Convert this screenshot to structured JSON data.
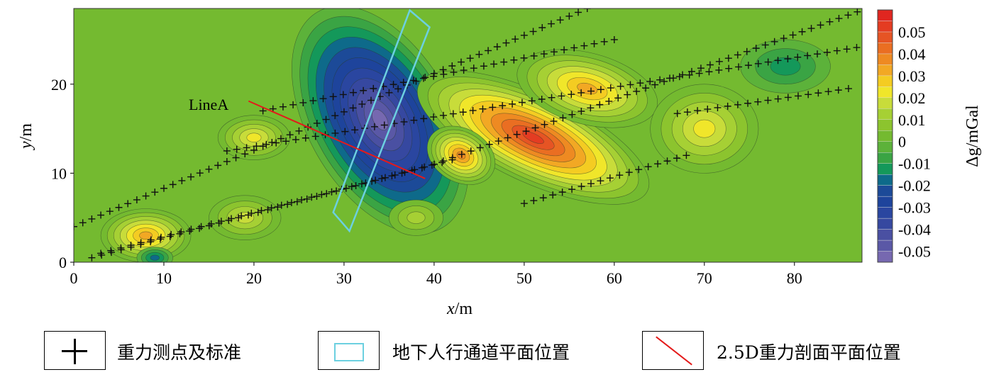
{
  "chart_data": {
    "type": "heatmap",
    "subtype": "contour-map",
    "xlabel_var": "x",
    "xlabel_unit": "/m",
    "ylabel_var": "y",
    "ylabel_unit": "/m",
    "xlim": [
      0,
      87.5
    ],
    "ylim": [
      0,
      28.5
    ],
    "xticks": [
      "0",
      "10",
      "20",
      "30",
      "40",
      "50",
      "60",
      "70",
      "80"
    ],
    "yticks": [
      "0",
      "10",
      "20"
    ],
    "colorbar": {
      "label": "Δg/mGal",
      "range": [
        -0.055,
        0.06
      ],
      "step": 0.005,
      "ticks": [
        "0.05",
        "0.04",
        "0.03",
        "0.02",
        "0.01",
        "0",
        "-0.01",
        "-0.02",
        "-0.03",
        "-0.04",
        "-0.05"
      ],
      "colors": [
        "#7668b0",
        "#5a58a6",
        "#4a50a2",
        "#3648a0",
        "#2a46a0",
        "#1e449c",
        "#1c4a98",
        "#0e6a8a",
        "#14985a",
        "#3aa444",
        "#5cb23a",
        "#74ba30",
        "#8cc42e",
        "#a6d034",
        "#c8dc3a",
        "#f0e62a",
        "#f4cc22",
        "#f2a824",
        "#ee8a22",
        "#ea6e22",
        "#e65424",
        "#e43c22",
        "#e02620"
      ]
    },
    "anomalies": [
      {
        "label": "low",
        "x": 34,
        "y": 16,
        "rx": 8,
        "ry": 14,
        "rot": 30,
        "peak": -0.05
      },
      {
        "label": "high",
        "x": 51,
        "y": 14,
        "rx": 14,
        "ry": 5,
        "rot": -25,
        "peak": 0.05
      },
      {
        "label": "high-n",
        "x": 57,
        "y": 19.5,
        "rx": 8,
        "ry": 4,
        "rot": -15,
        "peak": 0.03
      },
      {
        "label": "high-w",
        "x": 43,
        "y": 12,
        "rx": 4,
        "ry": 3,
        "rot": -30,
        "peak": 0.035
      },
      {
        "label": "high-e",
        "x": 70,
        "y": 15,
        "rx": 6,
        "ry": 5,
        "rot": 0,
        "peak": 0.022
      },
      {
        "label": "low-ne",
        "x": 79,
        "y": 22,
        "rx": 5,
        "ry": 3,
        "rot": 0,
        "peak": -0.012
      },
      {
        "label": "high-sw",
        "x": 8,
        "y": 3,
        "rx": 5,
        "ry": 3,
        "rot": 0,
        "peak": 0.03
      },
      {
        "label": "high-w2",
        "x": 20,
        "y": 14,
        "rx": 4,
        "ry": 2.5,
        "rot": 0,
        "peak": 0.022
      },
      {
        "label": "high-s",
        "x": 19,
        "y": 5,
        "rx": 4,
        "ry": 2.5,
        "rot": 0,
        "peak": 0.015
      },
      {
        "label": "high-s2",
        "x": 38,
        "y": 5,
        "rx": 3,
        "ry": 2,
        "rot": 0,
        "peak": 0.012
      },
      {
        "label": "low-sw",
        "x": 9,
        "y": 0.5,
        "rx": 2,
        "ry": 1.2,
        "rot": 0,
        "peak": -0.015
      }
    ],
    "survey_lines": [
      {
        "from": [
          0,
          4
        ],
        "to": [
          57,
          28.5
        ],
        "n": 58
      },
      {
        "from": [
          2,
          0.5
        ],
        "to": [
          40,
          11
        ],
        "n": 36
      },
      {
        "from": [
          40,
          11
        ],
        "to": [
          88,
          28.5
        ],
        "n": 48
      },
      {
        "from": [
          21,
          17
        ],
        "to": [
          60,
          25
        ],
        "n": 36
      },
      {
        "from": [
          17,
          12.5
        ],
        "to": [
          88,
          24.3
        ],
        "n": 66
      },
      {
        "from": [
          3,
          1
        ],
        "to": [
          42,
          11.5
        ],
        "n": 36
      },
      {
        "from": [
          50,
          6.6
        ],
        "to": [
          68,
          12
        ],
        "n": 18
      },
      {
        "from": [
          67,
          16.7
        ],
        "to": [
          86,
          19.5
        ],
        "n": 18
      }
    ],
    "tunnel_polygon": [
      [
        28.8,
        5.6
      ],
      [
        37.3,
        28.3
      ],
      [
        39.5,
        26.4
      ],
      [
        30.6,
        3.5
      ]
    ],
    "profile_line": {
      "label": "LineA",
      "from": [
        19.4,
        18.1
      ],
      "to": [
        39,
        9.4
      ]
    },
    "legend": [
      {
        "symbol": "+",
        "label": "重力测点及标准"
      },
      {
        "symbol": "cyan-rect",
        "label": "地下人行通道平面位置"
      },
      {
        "symbol": "red-line",
        "label": "2.5D重力剖面平面位置"
      }
    ]
  }
}
